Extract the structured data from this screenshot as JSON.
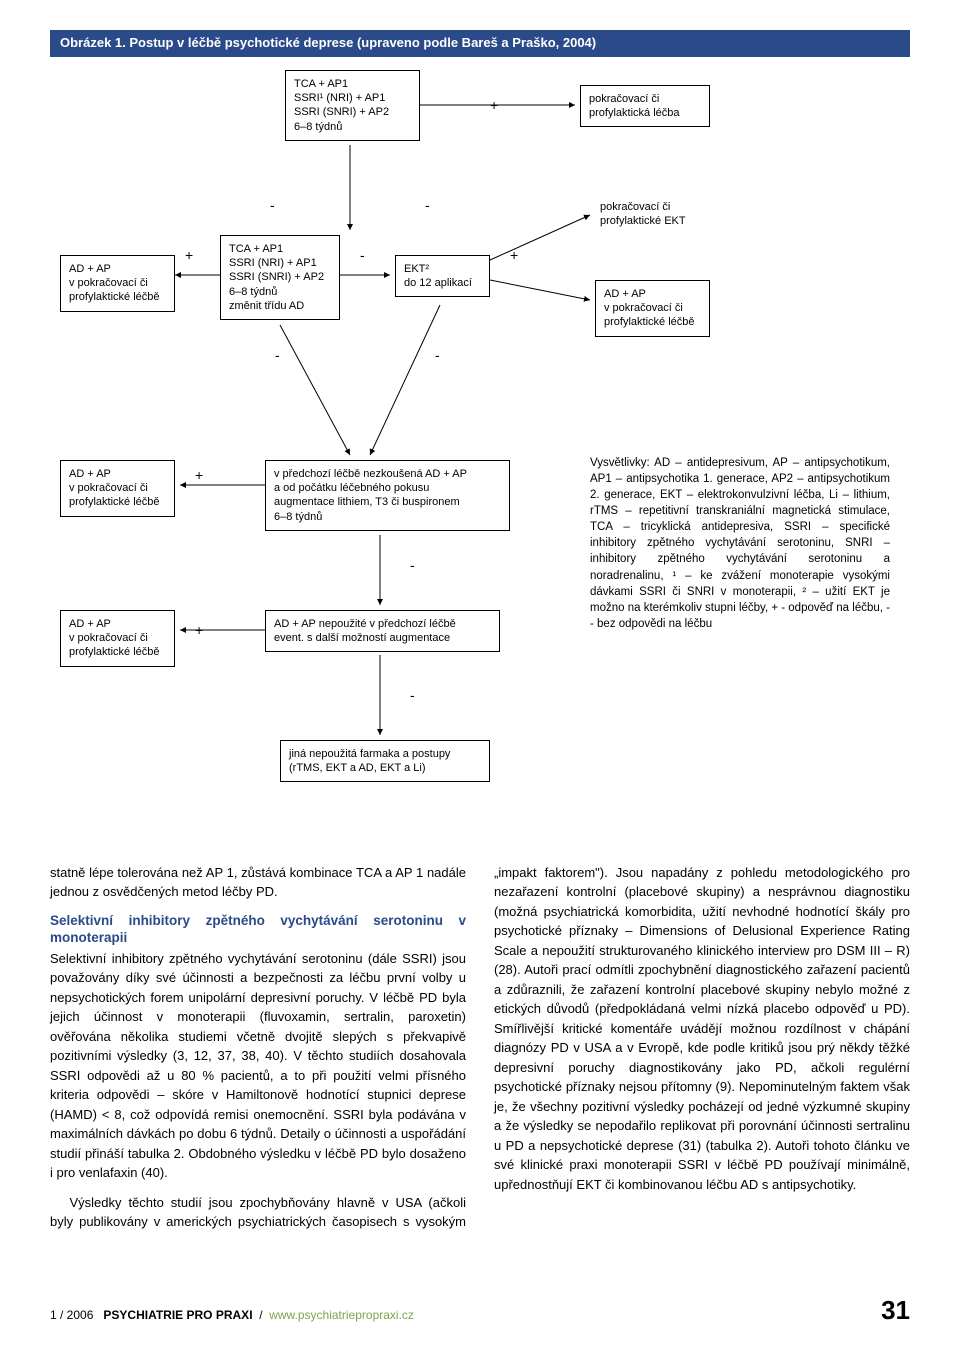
{
  "figure": {
    "title": "Obrázek 1. Postup v léčbě psychotické deprese (upraveno podle Bareš a Praško, 2004)",
    "nodes": {
      "n_top": "TCA + AP1\nSSRI¹ (NRI) + AP1\nSSRI (SNRI) + AP2\n6–8 týdnů",
      "n_right_top": "pokračovací či\nprofylaktická léčba",
      "n_left_mid": "AD + AP\nv pokračovací či\nprofylaktické léčbě",
      "n_mid": "TCA + AP1\nSSRI (NRI) + AP1\nSSRI (SNRI) + AP2\n6–8 týdnů\nzměnit třídu AD",
      "n_ekt2": "EKT²\ndo 12 aplikací",
      "n_right_mid_label": "pokračovací či\nprofylaktické EKT",
      "n_right_mid_box": "AD + AP\nv pokračovací či\nprofylaktické léčbě",
      "n_left3": "AD + AP\nv pokračovací či\nprofylaktické léčbě",
      "n_aug1": "v předchozí léčbě nezkoušená AD + AP\na od počátku léčebného pokusu\naugmentace lithiem, T3 či buspironem\n6–8 týdnů",
      "n_left4": "AD + AP\nv pokračovací či\nprofylaktické léčbě",
      "n_aug2": "AD + AP nepoužité v předchozí léčbě\nevent. s další možností augmentace",
      "n_last": "jiná nepoužitá farmaka a postupy\n(rTMS, EKT a AD, EKT a Li)"
    },
    "legend": "Vysvětlivky: AD – antidepresivum, AP – antipsychotikum, AP1 – antipsychotika 1. generace, AP2 – antipsychotikum 2. generace, EKT – elektrokonvulzivní léčba, Li – lithium, rTMS – repetitivní transkraniální magnetická stimulace, TCA – tricyklická antidepresiva, SSRI – specifické inhibitory zpětného vychytávání serotoninu, SNRI – inhibitory zpětného vychytávání serotoninu a noradrenalinu, ¹ – ke zvážení monoterapie vysokými dávkami SSRI či SNRI v monoterapii, ² – užití EKT je možno na kterémkoliv stupni léčby, + - odpověď na léčbu, - - bez odpovědi na léčbu"
  },
  "body": {
    "p1": "statně lépe tolerována než AP 1, zůstává kombinace TCA a AP 1 nadále jednou z osvědčených metod léčby PD.",
    "h1": "Selektivní inhibitory zpětného vychytávání serotoninu v monoterapii",
    "p2": "Selektivní inhibitory zpětného vychytávání serotoninu (dále SSRI) jsou považovány díky své účinnosti a bezpečnosti za léčbu první volby u nepsychotických forem unipolární depresivní poruchy. V léčbě PD byla jejich účinnost v monoterapii (fluvoxamin, sertralin, paroxetin) ověřována několika studiemi včetně dvojitě slepých s překvapivě pozitivními výsledky (3, 12, 37, 38, 40). V těchto studiích dosahovala SSRI odpovědi až u 80 % pacientů, a to při použití velmi přísného kriteria odpovědi – skóre v Hamiltonově hodnotící stupnici deprese (HAMD) < 8, což odpovídá remisi onemocnění. SSRI byla podávána v maximálních dávkách po dobu 6 týdnů. Detaily o účinnosti a uspořádání studií přináší tabulka 2. Obdobného výsledku v léčbě PD bylo dosaženo i pro venlafaxin (40).",
    "p3": "Výsledky těchto studií jsou zpochybňovány hlavně v USA (ačkoli byly publikovány v amerických psychiatrických časopisech s vysokým „impakt faktorem\"). Jsou napadány z pohledu metodologického pro nezařazení kontrolní (placebové skupiny) a nesprávnou diagnostiku (možná psychiatrická komorbidita, užití nevhodné hodnotící škály pro psychotické příznaky – Dimensions of Delusional Experience Rating Scale a nepoužití strukturovaného klinického interview pro DSM III – R) (28). Autoři prací odmítli zpochybnění diagnostického zařazení pacientů a zdůraznili, že zařazení kontrolní placebové skupiny nebylo možné z etických důvodů (předpokládaná velmi nízká placebo odpověď u PD). Smířlivější kritické komentáře uvádějí možnou rozdílnost v chápání diagnózy PD v USA a v Evropě, kde podle kritiků jsou prý někdy těžké depresivní poruchy diagnostikovány jako PD, ačkoli regulérní psychotické příznaky nejsou přítomny (9). Nepominutelným faktem však je, že všechny pozitivní výsledky pocházejí od jedné výzkumné skupiny a že výsledky se nepodařilo replikovat při porovnání účinnosti sertralinu u PD a nepsychotické deprese (31) (tabulka 2). Autoři tohoto článku ve své klinické praxi monoterapii SSRI v léčbě PD používají minimálně, upřednostňují EKT či kombinovanou léčbu AD s antipsychotiky."
  },
  "footer": {
    "issue": "1 / 2006",
    "journal": "PSYCHIATRIE PRO PRAXI",
    "url": "www.psychiatriepropraxi.cz",
    "page": "31"
  }
}
